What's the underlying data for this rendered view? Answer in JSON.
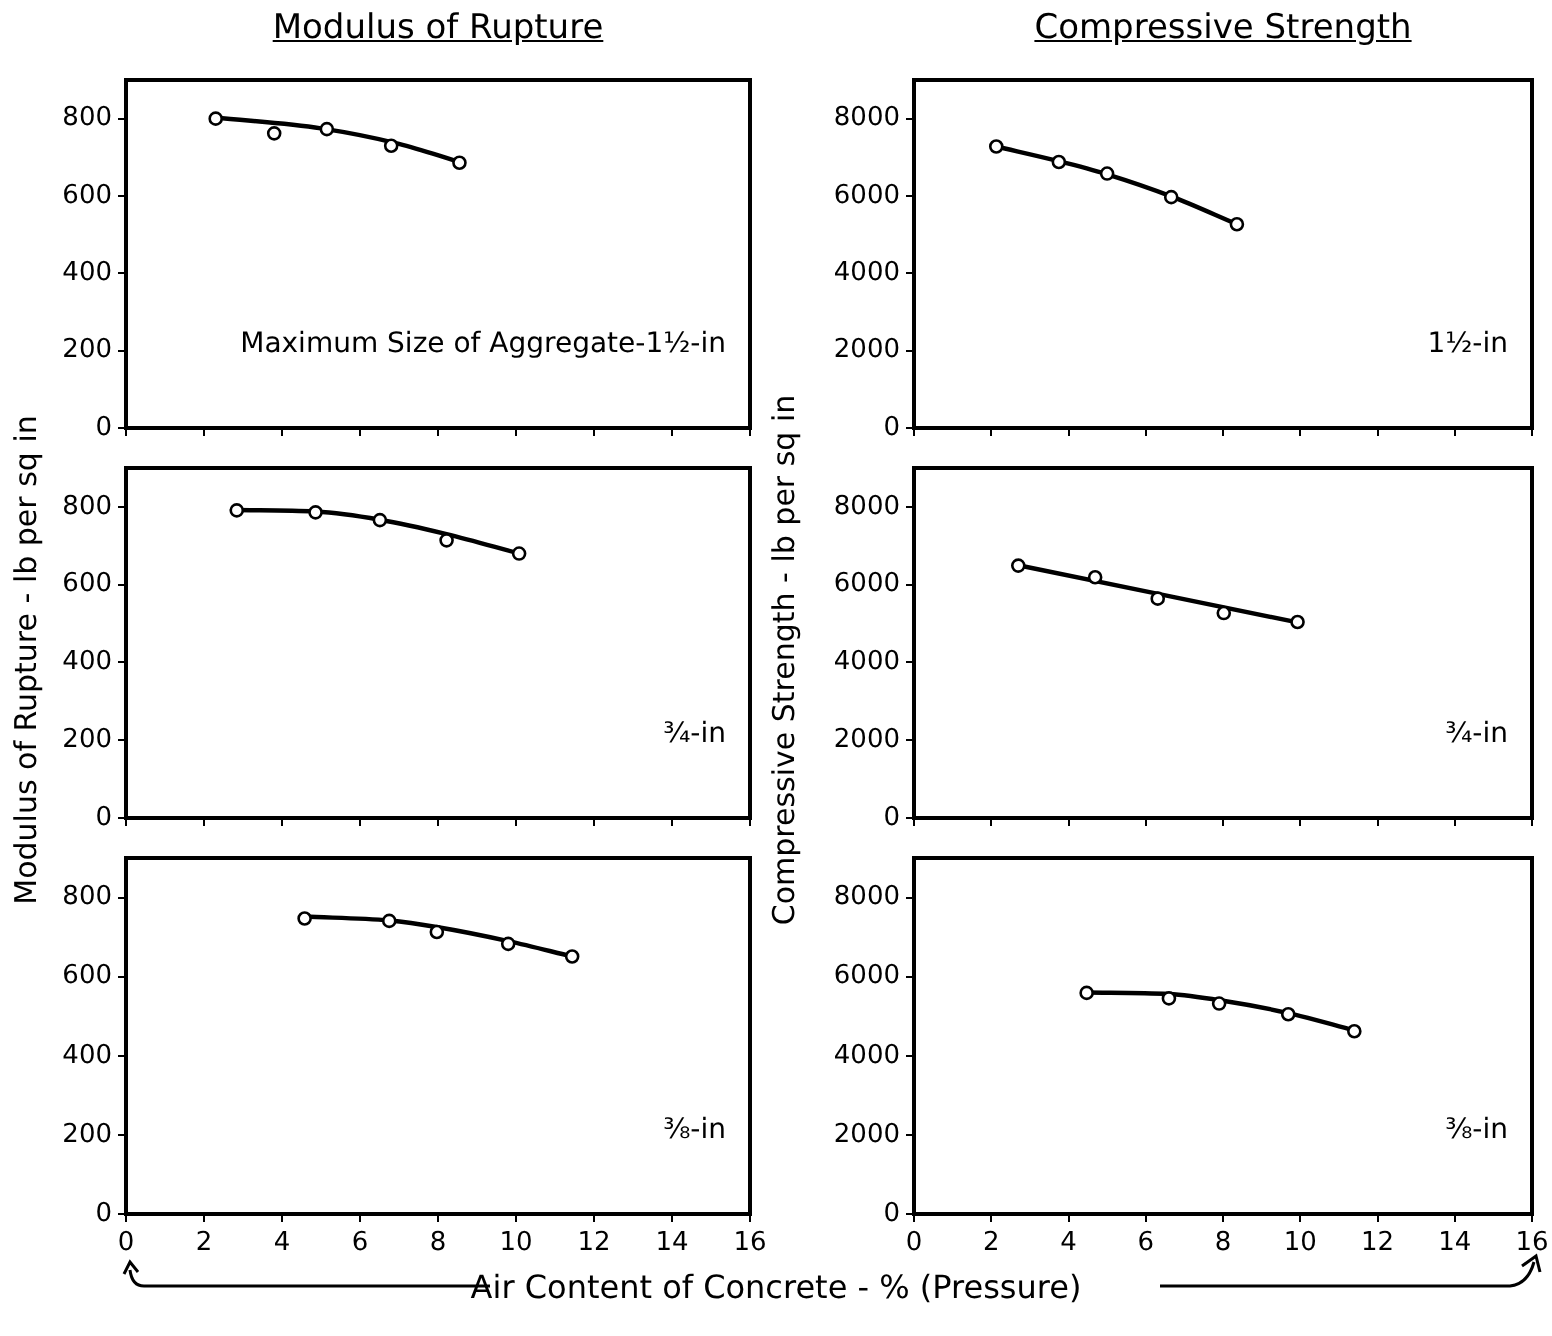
{
  "chart_data": [
    {
      "type": "scatter",
      "title": "Modulus of Rupture",
      "xlim": [
        0,
        16
      ],
      "xticks": [
        0,
        2,
        4,
        6,
        8,
        10,
        12,
        14,
        16
      ],
      "ylim": [
        0,
        900
      ],
      "yticks": [
        0,
        200,
        400,
        600,
        800
      ],
      "tick_labels": "y",
      "grid": false,
      "legend": false,
      "marker": "circle",
      "annotations": [
        "Maximum Size of Aggregate-1½-in"
      ],
      "series": [
        {
          "color": "#000000",
          "x": [
            2.3,
            3.8,
            5.15,
            6.8,
            8.55
          ],
          "values": [
            800,
            762,
            773,
            730,
            686
          ]
        },
        {
          "type": "line",
          "marker": "none",
          "color": "#000000",
          "x": [
            2.3,
            5,
            7,
            8.55
          ],
          "values": [
            803,
            775,
            735,
            688
          ]
        }
      ]
    },
    {
      "type": "scatter",
      "title": "Compressive Strength",
      "xlim": [
        0,
        16
      ],
      "xticks": [
        0,
        2,
        4,
        6,
        8,
        10,
        12,
        14,
        16
      ],
      "ylim": [
        0,
        9000
      ],
      "yticks": [
        0,
        2000,
        4000,
        6000,
        8000
      ],
      "tick_labels": "y",
      "grid": false,
      "legend": false,
      "marker": "circle",
      "annotations": [
        "1½-in"
      ],
      "series": [
        {
          "color": "#000000",
          "x": [
            2.13,
            3.75,
            5.0,
            6.66,
            8.36
          ],
          "values": [
            7280,
            6880,
            6580,
            5970,
            5270
          ]
        },
        {
          "type": "line",
          "marker": "none",
          "color": "#000000",
          "x": [
            2.13,
            3.75,
            5.0,
            6.66,
            8.36
          ],
          "values": [
            7280,
            6900,
            6560,
            5990,
            5270
          ]
        }
      ]
    },
    {
      "type": "scatter",
      "ylabel": "Modulus of Rupture - lb per sq in",
      "xlim": [
        0,
        16
      ],
      "xticks": [
        0,
        2,
        4,
        6,
        8,
        10,
        12,
        14,
        16
      ],
      "ylim": [
        0,
        900
      ],
      "yticks": [
        0,
        200,
        400,
        600,
        800
      ],
      "tick_labels": "y",
      "grid": false,
      "legend": false,
      "marker": "circle",
      "annotations": [
        "¾-in"
      ],
      "series": [
        {
          "color": "#000000",
          "x": [
            2.84,
            4.86,
            6.51,
            8.22,
            10.08
          ],
          "values": [
            791,
            786,
            766,
            714,
            680
          ]
        },
        {
          "type": "line",
          "marker": "none",
          "color": "#000000",
          "x": [
            2.84,
            4.86,
            6.51,
            8.22,
            10.08
          ],
          "values": [
            792,
            788,
            767,
            730,
            680
          ]
        }
      ]
    },
    {
      "type": "scatter",
      "ylabel": "Compressive Strength - lb per sq in",
      "xlim": [
        0,
        16
      ],
      "xticks": [
        0,
        2,
        4,
        6,
        8,
        10,
        12,
        14,
        16
      ],
      "ylim": [
        0,
        9000
      ],
      "yticks": [
        0,
        2000,
        4000,
        6000,
        8000
      ],
      "tick_labels": "y",
      "grid": false,
      "legend": false,
      "marker": "circle",
      "annotations": [
        "¾-in"
      ],
      "series": [
        {
          "color": "#000000",
          "x": [
            2.7,
            4.69,
            6.31,
            8.02,
            9.93
          ],
          "values": [
            6490,
            6190,
            5640,
            5270,
            5040
          ]
        },
        {
          "type": "line",
          "marker": "none",
          "color": "#000000",
          "x": [
            2.7,
            9.93
          ],
          "values": [
            6500,
            5030
          ]
        }
      ]
    },
    {
      "type": "scatter",
      "xlabel": "Air Content of Concrete - % (Pressure)",
      "xlim": [
        0,
        16
      ],
      "xticks": [
        0,
        2,
        4,
        6,
        8,
        10,
        12,
        14,
        16
      ],
      "ylim": [
        0,
        900
      ],
      "yticks": [
        0,
        200,
        400,
        600,
        800
      ],
      "grid": false,
      "legend": false,
      "marker": "circle",
      "annotations": [
        "⅜-in"
      ],
      "series": [
        {
          "color": "#000000",
          "x": [
            4.58,
            6.75,
            7.97,
            9.8,
            11.44
          ],
          "values": [
            747,
            741,
            713,
            683,
            651
          ]
        },
        {
          "type": "line",
          "marker": "none",
          "color": "#000000",
          "x": [
            4.58,
            6.75,
            8,
            9.8,
            11.44
          ],
          "values": [
            752,
            742,
            725,
            690,
            651
          ]
        }
      ]
    },
    {
      "type": "scatter",
      "xlim": [
        0,
        16
      ],
      "xticks": [
        0,
        2,
        4,
        6,
        8,
        10,
        12,
        14,
        16
      ],
      "ylim": [
        0,
        9000
      ],
      "yticks": [
        0,
        2000,
        4000,
        6000,
        8000
      ],
      "grid": false,
      "legend": false,
      "marker": "circle",
      "annotations": [
        "⅜-in"
      ],
      "series": [
        {
          "color": "#000000",
          "x": [
            4.47,
            6.6,
            7.9,
            9.69,
            11.4
          ],
          "values": [
            5590,
            5450,
            5320,
            5050,
            4620
          ]
        },
        {
          "type": "line",
          "marker": "none",
          "color": "#000000",
          "x": [
            4.47,
            6.6,
            8,
            9.69,
            11.4
          ],
          "values": [
            5600,
            5560,
            5390,
            5080,
            4640
          ]
        }
      ]
    }
  ]
}
